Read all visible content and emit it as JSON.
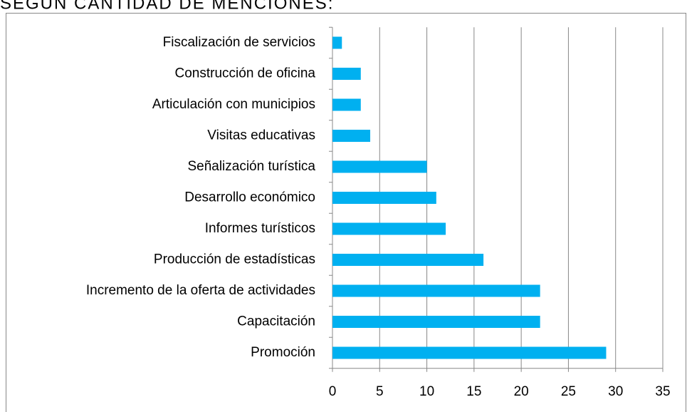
{
  "chart_data": {
    "type": "barh",
    "title": "SEGÚN CANTIDAD DE MENCIONES:",
    "categories": [
      "Fiscalización de servicios",
      "Construcción de oficina",
      "Articulación con municipios",
      "Visitas educativas",
      "Señalización turística",
      "Desarrollo económico",
      "Informes turísticos",
      "Producción de estadísticas",
      "Incremento de la oferta de actividades",
      "Capacitación",
      "Promoción"
    ],
    "values": [
      1,
      3,
      3,
      4,
      10,
      11,
      12,
      16,
      22,
      22,
      29
    ],
    "color": "#00b0f0",
    "xlim": [
      0,
      35
    ],
    "xticks": [
      0,
      5,
      10,
      15,
      20,
      25,
      30,
      35
    ],
    "grid": true
  }
}
